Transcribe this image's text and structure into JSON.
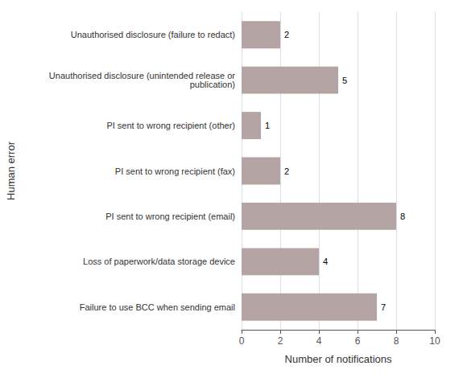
{
  "chart_data": {
    "type": "bar",
    "orientation": "horizontal",
    "categories": [
      "Failure to use BCC when sending email",
      "Loss of paperwork/data storage device",
      "PI sent to wrong recipient (email)",
      "PI sent to wrong recipient (fax)",
      "PI sent to wrong recipient (other)",
      "Unauthorised disclosure (unintended release or\n   publication)",
      "Unauthorised disclosure (failure to redact)"
    ],
    "values": [
      7,
      4,
      8,
      2,
      1,
      5,
      2
    ],
    "color": "#b5a4a4",
    "xlabel": "Number of notifications",
    "ylabel": "Human error",
    "xlim": [
      0,
      10
    ],
    "xticks": [
      0,
      2,
      4,
      6,
      8,
      10
    ],
    "grid": true,
    "data_labels": true
  }
}
